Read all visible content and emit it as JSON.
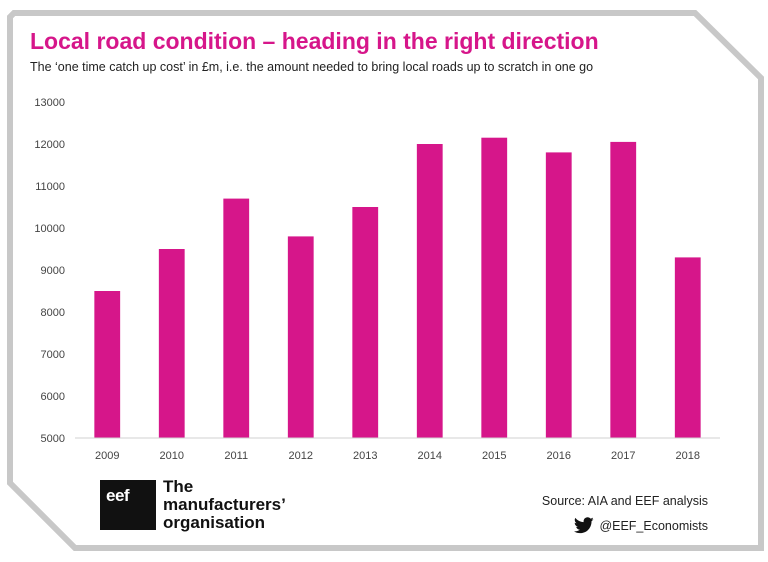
{
  "title": "Local road condition – heading in the right direction",
  "subtitle": "The ‘one time catch up cost’ in £m, i.e. the amount needed to bring local roads up to scratch in one go",
  "colors": {
    "accent": "#d6168a",
    "frame": "#c8c8c8"
  },
  "chart_data": {
    "type": "bar",
    "title": "Local road condition – heading in the right direction",
    "subtitle": "The ‘one time catch up cost’ in £m, i.e. the amount needed to bring local roads up to scratch in one go",
    "categories": [
      "2009",
      "2010",
      "2011",
      "2012",
      "2013",
      "2014",
      "2015",
      "2016",
      "2017",
      "2018"
    ],
    "values": [
      8500,
      9500,
      10700,
      9800,
      10500,
      12000,
      12150,
      11800,
      12050,
      9300
    ],
    "ylim": [
      5000,
      13000
    ],
    "yticks": [
      5000,
      6000,
      7000,
      8000,
      9000,
      10000,
      11000,
      12000,
      13000
    ],
    "xlabel": "",
    "ylabel": "",
    "grid": false,
    "legend": "none",
    "bar_color": "#d6168a"
  },
  "footer": {
    "logo_mark": "eef",
    "logo_lines": [
      "The",
      "manufacturers’",
      "organisation"
    ],
    "source": "Source: AIA and EEF analysis",
    "twitter_handle": "@EEF_Economists",
    "twitter_icon": "twitter-bird-icon"
  }
}
